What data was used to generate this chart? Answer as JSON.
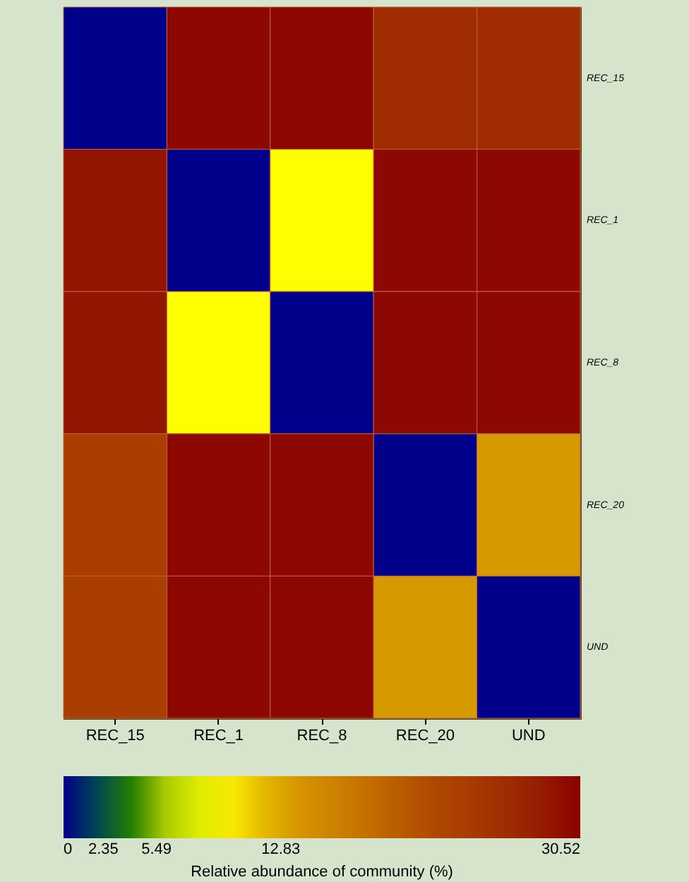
{
  "chart_data": {
    "type": "heatmap",
    "clabel": "Relative abundance of community (%)",
    "categories": [
      "REC_15",
      "REC_1",
      "REC_8",
      "REC_20",
      "UND"
    ],
    "y_categories": [
      "REC_15",
      "REC_1",
      "REC_8",
      "REC_20",
      "UND"
    ],
    "cells": [
      [
        0,
        30,
        30,
        26,
        26
      ],
      [
        29,
        0,
        9.2,
        30,
        30
      ],
      [
        29,
        9.2,
        0,
        30,
        30
      ],
      [
        23.5,
        30,
        30,
        0,
        13.5
      ],
      [
        23.5,
        30,
        30,
        13.5,
        0
      ]
    ],
    "clim": [
      0,
      30.52
    ],
    "cticks": [
      0,
      2.35,
      5.49,
      12.83,
      30.52
    ]
  }
}
